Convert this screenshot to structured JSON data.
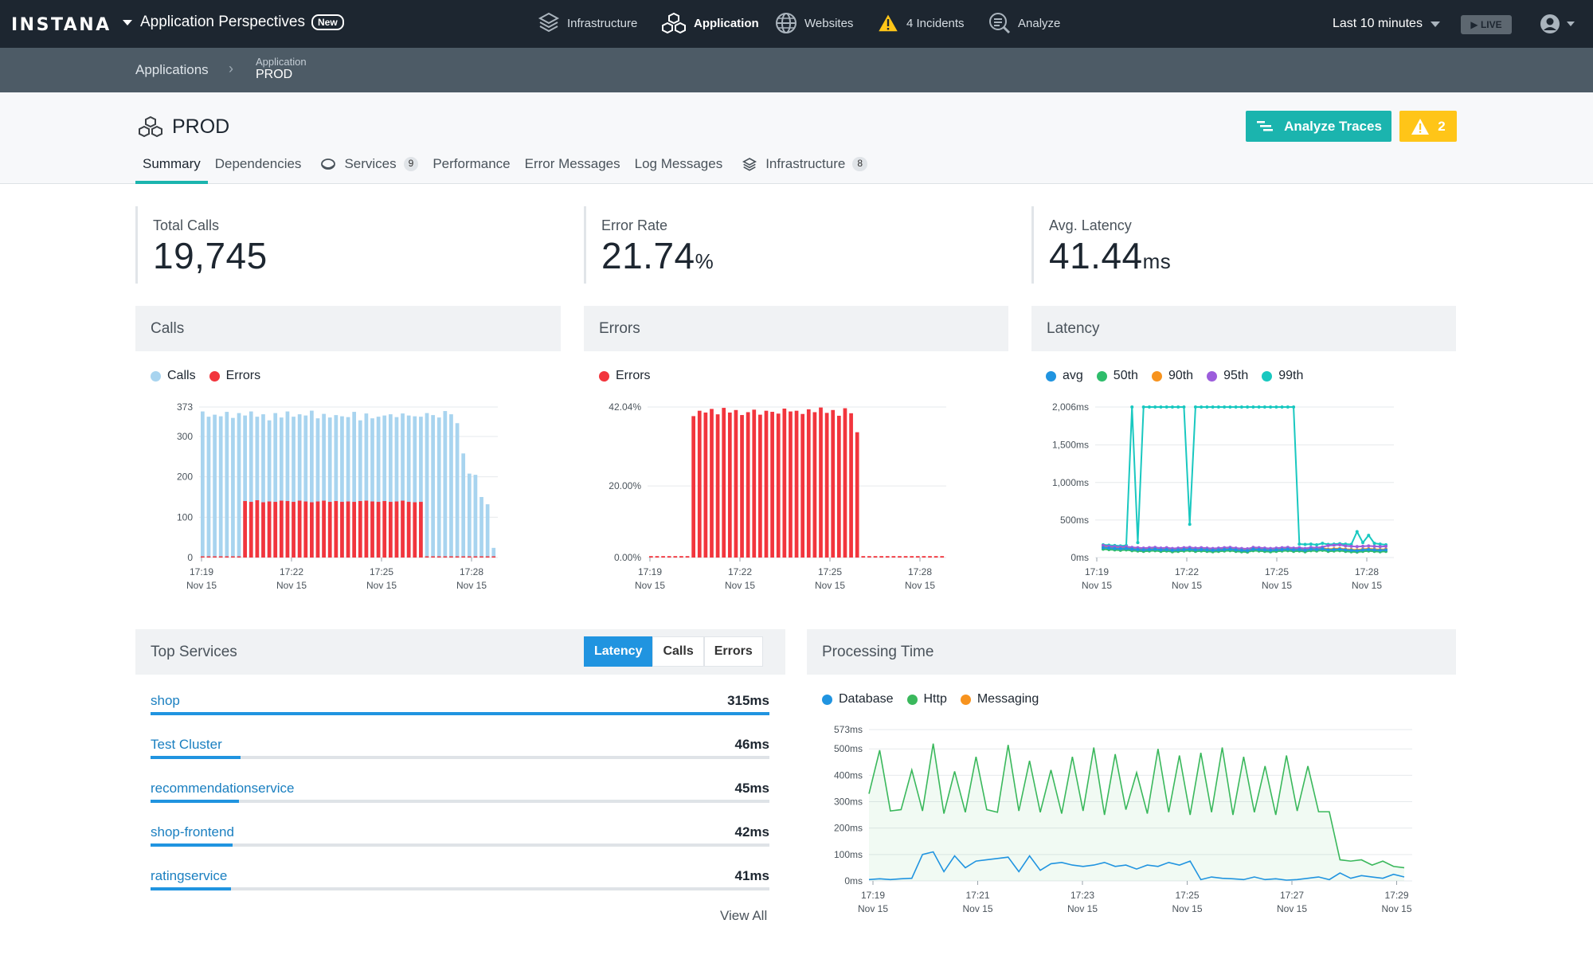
{
  "topbar": {
    "logo": "INSTANA",
    "perspective": "Application Perspectives",
    "new_badge": "New",
    "nav": [
      {
        "label": "Infrastructure",
        "icon": "infrastructure-icon"
      },
      {
        "label": "Application",
        "icon": "application-icon"
      },
      {
        "label": "Websites",
        "icon": "globe-icon"
      },
      {
        "label": "4 Incidents",
        "icon": "warning-icon"
      },
      {
        "label": "Analyze",
        "icon": "analyze-icon"
      }
    ],
    "time_range": "Last 10 minutes",
    "live": "▶ LIVE"
  },
  "breadcrumb": {
    "root": "Applications",
    "current_type": "Application",
    "current_name": "PROD"
  },
  "header": {
    "title": "PROD",
    "analyze_button": "Analyze Traces",
    "incident_count": "2",
    "tabs": [
      {
        "label": "Summary"
      },
      {
        "label": "Dependencies"
      },
      {
        "label": "Services",
        "count": "9"
      },
      {
        "label": "Performance"
      },
      {
        "label": "Error Messages"
      },
      {
        "label": "Log Messages"
      },
      {
        "label": "Infrastructure",
        "count": "8"
      }
    ]
  },
  "kpis": {
    "total_calls": {
      "label": "Total Calls",
      "value": "19,745",
      "unit": ""
    },
    "error_rate": {
      "label": "Error Rate",
      "value": "21.74",
      "unit": "%"
    },
    "avg_latency": {
      "label": "Avg. Latency",
      "value": "41.44",
      "unit": "ms"
    }
  },
  "colors": {
    "calls": "#a8d4ef",
    "errors": "#f2353d",
    "avg": "#2094e0",
    "p50": "#2ebd6b",
    "p90": "#f7931e",
    "p95": "#9c5ddc",
    "p99": "#19c8c0",
    "database": "#2094e0",
    "http": "#3ab85c",
    "messaging": "#f7931e",
    "accent": "#1bb4ae"
  },
  "panels": {
    "calls_title": "Calls",
    "errors_title": "Errors",
    "latency_title": "Latency",
    "top_services_title": "Top Services",
    "processing_title": "Processing Time"
  },
  "legends": {
    "calls": [
      "Calls",
      "Errors"
    ],
    "errors": [
      "Errors"
    ],
    "latency": [
      "avg",
      "50th",
      "90th",
      "95th",
      "99th"
    ],
    "processing": [
      "Database",
      "Http",
      "Messaging"
    ]
  },
  "top_services": {
    "toggles": [
      "Latency",
      "Calls",
      "Errors"
    ],
    "active_toggle": "Latency",
    "items": [
      {
        "name": "shop",
        "value": "315ms",
        "fraction": 1.0
      },
      {
        "name": "Test Cluster",
        "value": "46ms",
        "fraction": 0.146
      },
      {
        "name": "recommendationservice",
        "value": "45ms",
        "fraction": 0.143
      },
      {
        "name": "shop-frontend",
        "value": "42ms",
        "fraction": 0.133
      },
      {
        "name": "ratingservice",
        "value": "41ms",
        "fraction": 0.13
      }
    ],
    "view_all": "View All"
  },
  "chart_data": [
    {
      "type": "bar",
      "title": "Calls",
      "yticks": [
        "0",
        "100",
        "200",
        "300",
        "373"
      ],
      "ylim": [
        0,
        373
      ],
      "xticks": [
        {
          "time": "17:19",
          "date": "Nov 15"
        },
        {
          "time": "17:22",
          "date": "Nov 15"
        },
        {
          "time": "17:25",
          "date": "Nov 15"
        },
        {
          "time": "17:28",
          "date": "Nov 15"
        }
      ],
      "series": [
        {
          "name": "Calls",
          "values": [
            362,
            349,
            354,
            350,
            361,
            346,
            358,
            352,
            362,
            349,
            355,
            340,
            358,
            347,
            362,
            349,
            355,
            352,
            364,
            345,
            356,
            347,
            353,
            350,
            348,
            361,
            340,
            357,
            345,
            349,
            352,
            355,
            348,
            357,
            352,
            350,
            349,
            358,
            353,
            347,
            363,
            355,
            333,
            258,
            208,
            205,
            150,
            132,
            24
          ]
        },
        {
          "name": "Errors",
          "values": [
            3,
            3,
            3,
            3,
            3,
            3,
            3,
            140,
            138,
            142,
            137,
            139,
            138,
            141,
            140,
            138,
            141,
            139,
            137,
            139,
            141,
            138,
            140,
            138,
            139,
            138,
            140,
            141,
            139,
            138,
            140,
            138,
            139,
            141,
            138,
            137,
            138,
            3,
            3,
            3,
            3,
            3,
            3,
            3,
            3,
            3,
            3,
            3,
            3
          ]
        }
      ]
    },
    {
      "type": "bar",
      "title": "Errors",
      "yticks": [
        "0.00%",
        "20.00%",
        "42.04%"
      ],
      "ylim": [
        0,
        42.04
      ],
      "xticks": [
        {
          "time": "17:19",
          "date": "Nov 15"
        },
        {
          "time": "17:22",
          "date": "Nov 15"
        },
        {
          "time": "17:25",
          "date": "Nov 15"
        },
        {
          "time": "17:28",
          "date": "Nov 15"
        }
      ],
      "series": [
        {
          "name": "Errors",
          "values": [
            0.4,
            0.4,
            0.4,
            0.4,
            0.4,
            0.4,
            0.4,
            39.5,
            41.0,
            40.5,
            41.5,
            40.0,
            41.8,
            40.5,
            41.2,
            39.8,
            40.6,
            41.3,
            39.9,
            41.0,
            40.7,
            40.2,
            41.6,
            40.8,
            41.0,
            40.1,
            41.4,
            40.6,
            41.9,
            40.4,
            41.2,
            39.6,
            41.7,
            40.3,
            35.0,
            0.4,
            0.4,
            0.4,
            0.4,
            0.4,
            0.4,
            0.4,
            0.4,
            0.4,
            0.4,
            0.4,
            0.4,
            0.4,
            0.4
          ]
        }
      ]
    },
    {
      "type": "line",
      "title": "Latency",
      "yticks": [
        "0ms",
        "500ms",
        "1,000ms",
        "1,500ms",
        "2,006ms"
      ],
      "ylim": [
        0,
        2006
      ],
      "xticks": [
        {
          "time": "17:19",
          "date": "Nov 15"
        },
        {
          "time": "17:22",
          "date": "Nov 15"
        },
        {
          "time": "17:25",
          "date": "Nov 15"
        },
        {
          "time": "17:28",
          "date": "Nov 15"
        }
      ],
      "series": [
        {
          "name": "avg",
          "values": [
            80,
            75,
            70,
            65,
            70,
            60,
            55,
            50,
            55,
            60,
            50,
            55,
            45,
            50,
            55,
            60,
            50,
            55,
            50,
            45,
            50,
            55,
            60,
            50,
            45,
            40,
            60,
            55,
            50,
            45,
            50,
            55,
            60,
            50,
            55,
            45,
            60,
            55,
            65,
            50,
            55,
            60,
            50,
            45,
            40,
            50,
            55,
            50,
            45,
            50
          ]
        },
        {
          "name": "50th",
          "values": [
            60,
            55,
            50,
            45,
            50,
            40,
            35,
            30,
            35,
            40,
            30,
            35,
            25,
            30,
            35,
            40,
            30,
            35,
            30,
            25,
            30,
            35,
            40,
            30,
            25,
            20,
            40,
            35,
            30,
            25,
            30,
            35,
            40,
            30,
            35,
            25,
            40,
            35,
            45,
            30,
            35,
            40,
            30,
            25,
            20,
            30,
            35,
            30,
            25,
            30
          ]
        },
        {
          "name": "90th",
          "values": [
            90,
            85,
            80,
            75,
            80,
            70,
            65,
            60,
            65,
            70,
            60,
            65,
            55,
            60,
            65,
            70,
            60,
            65,
            60,
            55,
            60,
            65,
            70,
            60,
            55,
            50,
            70,
            65,
            60,
            55,
            60,
            65,
            70,
            60,
            65,
            55,
            70,
            65,
            75,
            60,
            65,
            70,
            60,
            55,
            50,
            60,
            65,
            60,
            55,
            60
          ]
        },
        {
          "name": "95th",
          "values": [
            110,
            100,
            95,
            90,
            95,
            85,
            80,
            75,
            80,
            85,
            75,
            80,
            70,
            75,
            80,
            85,
            75,
            80,
            75,
            70,
            75,
            80,
            85,
            75,
            70,
            65,
            85,
            80,
            75,
            70,
            75,
            80,
            85,
            75,
            80,
            70,
            85,
            80,
            90,
            110,
            115,
            120,
            105,
            100,
            95,
            100,
            105,
            100,
            95,
            100
          ]
        },
        {
          "name": "99th",
          "values": [
            120,
            115,
            110,
            105,
            110,
            2006,
            150,
            2006,
            2006,
            2006,
            2006,
            2006,
            2006,
            2006,
            2006,
            400,
            2006,
            2006,
            2006,
            2006,
            2006,
            2006,
            2006,
            2006,
            2006,
            2006,
            2006,
            2006,
            2006,
            2006,
            2006,
            2006,
            2006,
            2006,
            130,
            125,
            130,
            120,
            140,
            125,
            130,
            135,
            130,
            125,
            300,
            150,
            250,
            140,
            130,
            120
          ]
        }
      ]
    },
    {
      "type": "area",
      "title": "Processing Time",
      "yticks": [
        "0ms",
        "100ms",
        "200ms",
        "300ms",
        "400ms",
        "500ms",
        "573ms"
      ],
      "ylim": [
        0,
        573
      ],
      "xticks": [
        {
          "time": "17:19",
          "date": "Nov 15"
        },
        {
          "time": "17:21",
          "date": "Nov 15"
        },
        {
          "time": "17:23",
          "date": "Nov 15"
        },
        {
          "time": "17:25",
          "date": "Nov 15"
        },
        {
          "time": "17:27",
          "date": "Nov 15"
        },
        {
          "time": "17:29",
          "date": "Nov 15"
        }
      ],
      "series": [
        {
          "name": "Http",
          "values": [
            330,
            495,
            265,
            270,
            420,
            265,
            520,
            255,
            415,
            260,
            470,
            270,
            260,
            515,
            265,
            455,
            260,
            420,
            255,
            470,
            265,
            505,
            250,
            480,
            270,
            410,
            255,
            500,
            260,
            475,
            250,
            485,
            260,
            505,
            250,
            470,
            260,
            435,
            250,
            475,
            265,
            435,
            262,
            262,
            80,
            75,
            80,
            60,
            75,
            55,
            50
          ]
        },
        {
          "name": "Database",
          "values": [
            5,
            8,
            5,
            8,
            10,
            100,
            110,
            35,
            95,
            50,
            75,
            80,
            85,
            90,
            35,
            95,
            40,
            65,
            70,
            60,
            55,
            60,
            70,
            55,
            60,
            45,
            60,
            55,
            70,
            60,
            75,
            5,
            15,
            10,
            8,
            5,
            15,
            5,
            8,
            3,
            5,
            10,
            15,
            5,
            30,
            10,
            20,
            15,
            10,
            25,
            15
          ]
        },
        {
          "name": "Messaging",
          "values": []
        }
      ]
    }
  ]
}
